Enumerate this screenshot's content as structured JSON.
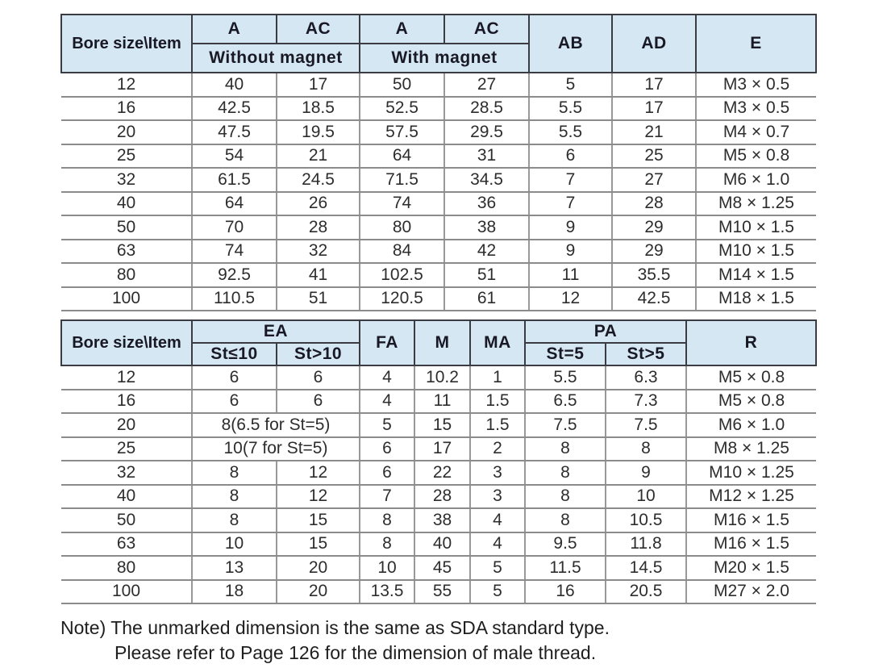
{
  "colors": {
    "header_bg": "#d5e7f3",
    "header_text": "#191925",
    "body_text": "#2d2d2d",
    "border_dark": "#3b3b44",
    "border_light": "#8b8b8b",
    "page_bg": "#ffffff"
  },
  "table1": {
    "corner_label": "Bore size\\Item",
    "top_headers": [
      "A",
      "AC",
      "A",
      "AC"
    ],
    "group_headers": [
      "Without magnet",
      "With magnet"
    ],
    "right_headers": [
      "AB",
      "AD",
      "E"
    ],
    "rows": [
      {
        "bore": "12",
        "cells": [
          "40",
          "17",
          "50",
          "27",
          "5",
          "17",
          "M3 × 0.5"
        ]
      },
      {
        "bore": "16",
        "cells": [
          "42.5",
          "18.5",
          "52.5",
          "28.5",
          "5.5",
          "17",
          "M3 × 0.5"
        ]
      },
      {
        "bore": "20",
        "cells": [
          "47.5",
          "19.5",
          "57.5",
          "29.5",
          "5.5",
          "21",
          "M4 × 0.7"
        ]
      },
      {
        "bore": "25",
        "cells": [
          "54",
          "21",
          "64",
          "31",
          "6",
          "25",
          "M5 × 0.8"
        ]
      },
      {
        "bore": "32",
        "cells": [
          "61.5",
          "24.5",
          "71.5",
          "34.5",
          "7",
          "27",
          "M6 × 1.0"
        ]
      },
      {
        "bore": "40",
        "cells": [
          "64",
          "26",
          "74",
          "36",
          "7",
          "28",
          "M8 × 1.25"
        ]
      },
      {
        "bore": "50",
        "cells": [
          "70",
          "28",
          "80",
          "38",
          "9",
          "29",
          "M10 × 1.5"
        ]
      },
      {
        "bore": "63",
        "cells": [
          "74",
          "32",
          "84",
          "42",
          "9",
          "29",
          "M10 × 1.5"
        ]
      },
      {
        "bore": "80",
        "cells": [
          "92.5",
          "41",
          "102.5",
          "51",
          "11",
          "35.5",
          "M14 × 1.5"
        ]
      },
      {
        "bore": "100",
        "cells": [
          "110.5",
          "51",
          "120.5",
          "61",
          "12",
          "42.5",
          "M18 × 1.5"
        ]
      }
    ]
  },
  "table2": {
    "corner_label": "Bore size\\Item",
    "ea_header": "EA",
    "ea_sub": [
      "St≤10",
      "St>10"
    ],
    "fa_header": "FA",
    "m_header": "M",
    "ma_header": "MA",
    "pa_header": "PA",
    "pa_sub": [
      "St=5",
      "St>5"
    ],
    "r_header": "R",
    "rows": [
      {
        "bore": "12",
        "ea": [
          "6",
          "6"
        ],
        "fa": "4",
        "m": "10.2",
        "ma": "1",
        "pa": [
          "5.5",
          "6.3"
        ],
        "r": "M5 × 0.8"
      },
      {
        "bore": "16",
        "ea": [
          "6",
          "6"
        ],
        "fa": "4",
        "m": "11",
        "ma": "1.5",
        "pa": [
          "6.5",
          "7.3"
        ],
        "r": "M5 × 0.8"
      },
      {
        "bore": "20",
        "ea_merged": "8(6.5 for St=5)",
        "fa": "5",
        "m": "15",
        "ma": "1.5",
        "pa": [
          "7.5",
          "7.5"
        ],
        "r": "M6 × 1.0"
      },
      {
        "bore": "25",
        "ea_merged": "10(7 for St=5)",
        "fa": "6",
        "m": "17",
        "ma": "2",
        "pa": [
          "8",
          "8"
        ],
        "r": "M8 × 1.25"
      },
      {
        "bore": "32",
        "ea": [
          "8",
          "12"
        ],
        "fa": "6",
        "m": "22",
        "ma": "3",
        "pa": [
          "8",
          "9"
        ],
        "r": "M10 × 1.25"
      },
      {
        "bore": "40",
        "ea": [
          "8",
          "12"
        ],
        "fa": "7",
        "m": "28",
        "ma": "3",
        "pa": [
          "8",
          "10"
        ],
        "r": "M12 × 1.25"
      },
      {
        "bore": "50",
        "ea": [
          "8",
          "15"
        ],
        "fa": "8",
        "m": "38",
        "ma": "4",
        "pa": [
          "8",
          "10.5"
        ],
        "r": "M16 × 1.5"
      },
      {
        "bore": "63",
        "ea": [
          "10",
          "15"
        ],
        "fa": "8",
        "m": "40",
        "ma": "4",
        "pa": [
          "9.5",
          "11.8"
        ],
        "r": "M16 × 1.5"
      },
      {
        "bore": "80",
        "ea": [
          "13",
          "20"
        ],
        "fa": "10",
        "m": "45",
        "ma": "5",
        "pa": [
          "11.5",
          "14.5"
        ],
        "r": "M20 × 1.5"
      },
      {
        "bore": "100",
        "ea": [
          "18",
          "20"
        ],
        "fa": "13.5",
        "m": "55",
        "ma": "5",
        "pa": [
          "16",
          "20.5"
        ],
        "r": "M27 × 2.0"
      }
    ]
  },
  "note": {
    "line1": "Note) The unmarked dimension is the same as SDA standard type.",
    "line2": "Please refer to Page 126 for the dimension of male thread."
  }
}
